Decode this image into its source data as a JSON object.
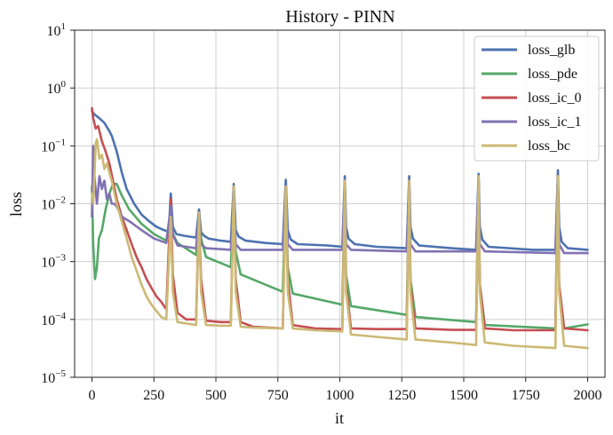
{
  "chart_data": {
    "type": "line",
    "title": "History - PINN",
    "xlabel": "it",
    "ylabel": "loss",
    "xlim": [
      -70,
      2070
    ],
    "ylim": [
      1e-05,
      10
    ],
    "yscale": "log",
    "grid": true,
    "legend_position": "top-right",
    "x_ticks": [
      0,
      250,
      500,
      750,
      1000,
      1250,
      1500,
      1750,
      2000
    ],
    "x_tick_labels": [
      "0",
      "250",
      "500",
      "750",
      "1000",
      "1250",
      "1500",
      "1750",
      "2000"
    ],
    "y_ticks": [
      1e-05,
      0.0001,
      0.001,
      0.01,
      0.1,
      1,
      10
    ],
    "y_tick_labels": [
      {
        "base": "10",
        "exp": "−5"
      },
      {
        "base": "10",
        "exp": "−4"
      },
      {
        "base": "10",
        "exp": "−3"
      },
      {
        "base": "10",
        "exp": "−2"
      },
      {
        "base": "10",
        "exp": "−1"
      },
      {
        "base": "10",
        "exp": "0"
      },
      {
        "base": "10",
        "exp": "1"
      }
    ],
    "series": [
      {
        "name": "loss_glb",
        "color": "#4c72b0",
        "x": [
          0,
          10,
          30,
          50,
          70,
          80,
          100,
          120,
          140,
          170,
          200,
          230,
          260,
          290,
          310,
          318,
          326,
          340,
          370,
          420,
          432,
          440,
          452,
          470,
          520,
          560,
          572,
          580,
          592,
          620,
          700,
          770,
          782,
          790,
          802,
          830,
          950,
          1010,
          1020,
          1025,
          1035,
          1060,
          1150,
          1270,
          1280,
          1285,
          1295,
          1320,
          1450,
          1550,
          1560,
          1565,
          1575,
          1600,
          1780,
          1870,
          1880,
          1885,
          1895,
          1920,
          2000
        ],
        "y": [
          0.4,
          0.35,
          0.3,
          0.25,
          0.18,
          0.15,
          0.08,
          0.035,
          0.018,
          0.01,
          0.0065,
          0.005,
          0.004,
          0.0035,
          0.0033,
          0.015,
          0.004,
          0.003,
          0.0028,
          0.0026,
          0.008,
          0.0032,
          0.0028,
          0.0025,
          0.0023,
          0.0022,
          0.022,
          0.0035,
          0.0027,
          0.0023,
          0.0021,
          0.002,
          0.026,
          0.0035,
          0.0024,
          0.002,
          0.0019,
          0.0018,
          0.03,
          0.004,
          0.0025,
          0.002,
          0.0018,
          0.0017,
          0.03,
          0.004,
          0.0025,
          0.0019,
          0.0017,
          0.0016,
          0.033,
          0.004,
          0.0024,
          0.0018,
          0.0016,
          0.0016,
          0.038,
          0.004,
          0.0022,
          0.0017,
          0.0016
        ]
      },
      {
        "name": "loss_pde",
        "color": "#55a868",
        "x": [
          0,
          5,
          12,
          20,
          28,
          40,
          55,
          70,
          85,
          100,
          120,
          150,
          200,
          250,
          300,
          318,
          326,
          345,
          420,
          432,
          440,
          460,
          560,
          572,
          580,
          600,
          770,
          782,
          790,
          810,
          1010,
          1020,
          1025,
          1045,
          1270,
          1280,
          1285,
          1305,
          1550,
          1560,
          1565,
          1585,
          1870,
          1880,
          1885,
          1905,
          2000
        ],
        "y": [
          0.02,
          0.002,
          0.0005,
          0.0008,
          0.0025,
          0.0035,
          0.008,
          0.015,
          0.022,
          0.022,
          0.014,
          0.008,
          0.0045,
          0.003,
          0.0023,
          0.007,
          0.003,
          0.0021,
          0.0013,
          0.007,
          0.0025,
          0.0012,
          0.0008,
          0.013,
          0.0015,
          0.0006,
          0.0003,
          0.018,
          0.0008,
          0.00028,
          0.00018,
          0.02,
          0.0006,
          0.00017,
          0.00012,
          0.02,
          0.0005,
          0.00011,
          9e-05,
          0.025,
          0.0004,
          8e-05,
          7e-05,
          0.03,
          0.00035,
          7e-05,
          8.2e-05
        ]
      },
      {
        "name": "loss_ic_0",
        "color": "#c44e52",
        "x": [
          0,
          5,
          15,
          25,
          40,
          55,
          70,
          85,
          100,
          120,
          140,
          160,
          180,
          200,
          220,
          240,
          260,
          280,
          300,
          318,
          326,
          345,
          380,
          420,
          432,
          440,
          460,
          520,
          560,
          572,
          580,
          600,
          650,
          770,
          782,
          790,
          810,
          900,
          1010,
          1020,
          1025,
          1045,
          1150,
          1270,
          1280,
          1285,
          1305,
          1450,
          1550,
          1560,
          1565,
          1585,
          1700,
          1870,
          1880,
          1885,
          1905,
          2000
        ],
        "y": [
          0.45,
          0.3,
          0.2,
          0.22,
          0.12,
          0.08,
          0.05,
          0.025,
          0.012,
          0.006,
          0.0035,
          0.002,
          0.0012,
          0.0008,
          0.0005,
          0.00035,
          0.00025,
          0.0002,
          0.00015,
          0.012,
          0.0006,
          0.00013,
          0.0001,
          0.0001,
          0.007,
          0.0005,
          9.5e-05,
          9e-05,
          9e-05,
          0.02,
          0.0005,
          9e-05,
          7.5e-05,
          7e-05,
          0.02,
          0.0005,
          8e-05,
          7e-05,
          6.8e-05,
          0.025,
          0.0004,
          7e-05,
          6.8e-05,
          6.8e-05,
          0.025,
          0.0004,
          7e-05,
          6.6e-05,
          6.6e-05,
          0.03,
          0.0004,
          7e-05,
          6.5e-05,
          6.5e-05,
          0.03,
          0.0004,
          7e-05,
          6.5e-05
        ]
      },
      {
        "name": "loss_ic_1",
        "color": "#8172b2",
        "x": [
          0,
          5,
          10,
          20,
          30,
          40,
          50,
          60,
          70,
          80,
          90,
          100,
          120,
          150,
          200,
          250,
          300,
          318,
          326,
          345,
          420,
          432,
          440,
          460,
          560,
          572,
          580,
          600,
          770,
          782,
          790,
          810,
          1010,
          1020,
          1025,
          1045,
          1270,
          1280,
          1285,
          1305,
          1550,
          1560,
          1565,
          1585,
          1870,
          1880,
          1885,
          1905,
          2000
        ],
        "y": [
          0.006,
          0.1,
          0.03,
          0.01,
          0.03,
          0.018,
          0.025,
          0.012,
          0.015,
          0.01,
          0.01,
          0.009,
          0.006,
          0.005,
          0.0035,
          0.0025,
          0.0021,
          0.009,
          0.003,
          0.0019,
          0.0017,
          0.007,
          0.002,
          0.0017,
          0.0016,
          0.015,
          0.002,
          0.0016,
          0.0016,
          0.02,
          0.002,
          0.0016,
          0.0016,
          0.022,
          0.002,
          0.0016,
          0.0015,
          0.025,
          0.002,
          0.0015,
          0.0015,
          0.025,
          0.002,
          0.0015,
          0.0014,
          0.028,
          0.002,
          0.0014,
          0.0014
        ]
      },
      {
        "name": "loss_bc",
        "color": "#ccb974",
        "x": [
          0,
          5,
          10,
          15,
          20,
          30,
          40,
          50,
          60,
          70,
          80,
          100,
          120,
          140,
          160,
          180,
          200,
          220,
          240,
          260,
          280,
          300,
          318,
          326,
          345,
          380,
          420,
          432,
          440,
          460,
          520,
          560,
          572,
          580,
          600,
          650,
          770,
          782,
          790,
          810,
          900,
          1010,
          1020,
          1025,
          1045,
          1150,
          1270,
          1280,
          1285,
          1305,
          1450,
          1550,
          1560,
          1565,
          1585,
          1700,
          1870,
          1880,
          1885,
          1905,
          2000
        ],
        "y": [
          0.015,
          0.01,
          0.03,
          0.11,
          0.13,
          0.06,
          0.07,
          0.04,
          0.05,
          0.035,
          0.025,
          0.01,
          0.005,
          0.0025,
          0.0012,
          0.0007,
          0.0004,
          0.00025,
          0.00018,
          0.00014,
          0.00011,
          0.0001,
          0.006,
          0.0003,
          9e-05,
          8.5e-05,
          8e-05,
          0.007,
          0.0003,
          8e-05,
          7.8e-05,
          7.8e-05,
          0.02,
          0.0003,
          7.5e-05,
          7.2e-05,
          7e-05,
          0.02,
          0.0003,
          7e-05,
          6.5e-05,
          6.2e-05,
          0.025,
          0.0003,
          5.5e-05,
          5e-05,
          4.5e-05,
          0.025,
          0.0003,
          4.5e-05,
          4e-05,
          3.6e-05,
          0.03,
          0.0003,
          4e-05,
          3.5e-05,
          3.2e-05,
          0.03,
          0.0003,
          3.5e-05,
          3.2e-05
        ]
      }
    ]
  }
}
